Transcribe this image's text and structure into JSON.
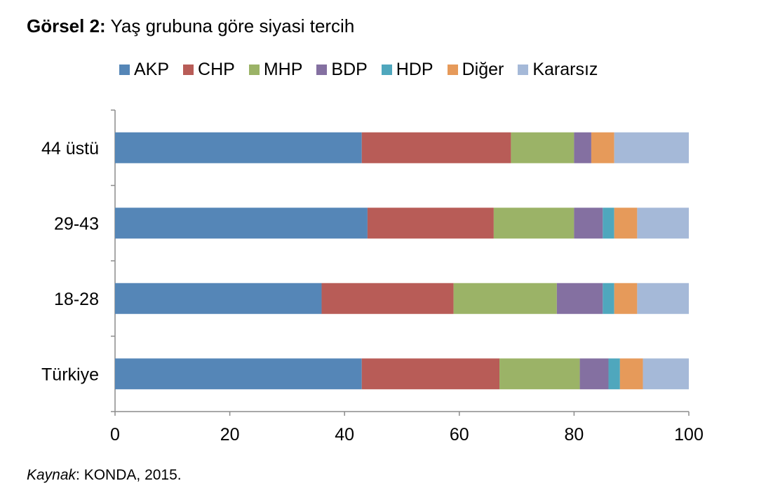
{
  "figure": {
    "label": "Görsel 2:",
    "caption": "Yaş grubuna göre siyasi tercih"
  },
  "source": {
    "label": "Kaynak",
    "text": ": KONDA, 2015."
  },
  "chart_data": {
    "type": "bar",
    "orientation": "horizontal",
    "stacked": true,
    "categories": [
      "44 üstü",
      "29-43",
      "18-28",
      "Türkiye"
    ],
    "series": [
      {
        "name": "AKP",
        "color": "#5586B7",
        "values": [
          43,
          44,
          36,
          43
        ]
      },
      {
        "name": "CHP",
        "color": "#B85C57",
        "values": [
          26,
          22,
          23,
          24
        ]
      },
      {
        "name": "MHP",
        "color": "#9BB367",
        "values": [
          11,
          14,
          18,
          14
        ]
      },
      {
        "name": "BDP",
        "color": "#8470A1",
        "values": [
          3,
          5,
          8,
          5
        ]
      },
      {
        "name": "HDP",
        "color": "#4FA7BD",
        "values": [
          0,
          2,
          2,
          2
        ]
      },
      {
        "name": "Diğer",
        "color": "#E69A5A",
        "values": [
          4,
          4,
          4,
          4
        ]
      },
      {
        "name": "Kararsız",
        "color": "#A5B9D8",
        "values": [
          13,
          9,
          9,
          8
        ]
      }
    ],
    "xlim": [
      0,
      100
    ],
    "xticks": [
      0,
      20,
      40,
      60,
      80,
      100
    ],
    "legend": "top",
    "grid": false
  }
}
